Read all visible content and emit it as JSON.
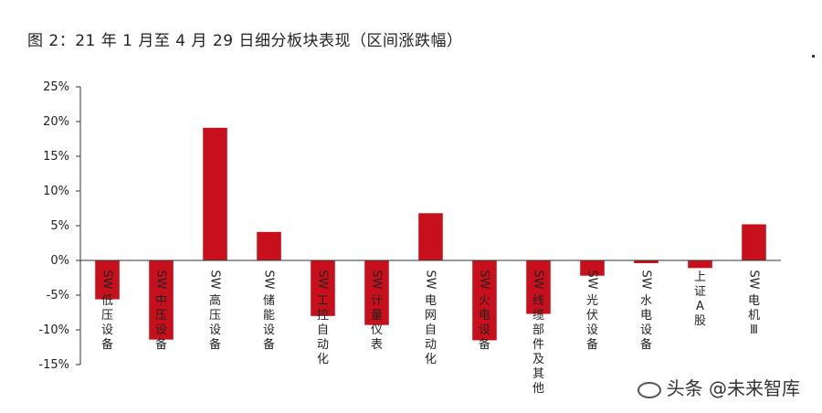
{
  "chart_data": {
    "type": "bar",
    "title": "图 2：21 年 1 月至 4 月 29 日细分板块表现（区间涨跌幅）",
    "categories": [
      "SW低压设备",
      "SW中压设备",
      "SW高压设备",
      "SW储能设备",
      "SW工控自动化",
      "SW计量仪表",
      "SW电网自动化",
      "SW火电设备",
      "SW线缆部件及其他",
      "SW光伏设备",
      "SW水电设备",
      "上证A股",
      "SW电机Ⅲ"
    ],
    "values": [
      -5.6,
      -11.4,
      19.1,
      4.1,
      -8.0,
      -9.3,
      6.8,
      -11.5,
      -7.7,
      -2.2,
      -0.4,
      -1.1,
      5.2
    ],
    "ylim": [
      -15,
      25
    ],
    "yticks": [
      -15,
      -10,
      -5,
      0,
      5,
      10,
      15,
      20,
      25
    ],
    "ytick_labels": [
      "-15%",
      "-10%",
      "-5%",
      "0%",
      "5%",
      "10%",
      "15%",
      "20%",
      "25%"
    ],
    "bar_color": "#c8101c",
    "grid": false,
    "xlabel": "",
    "ylabel": ""
  },
  "watermark": "头条 @未来智库"
}
